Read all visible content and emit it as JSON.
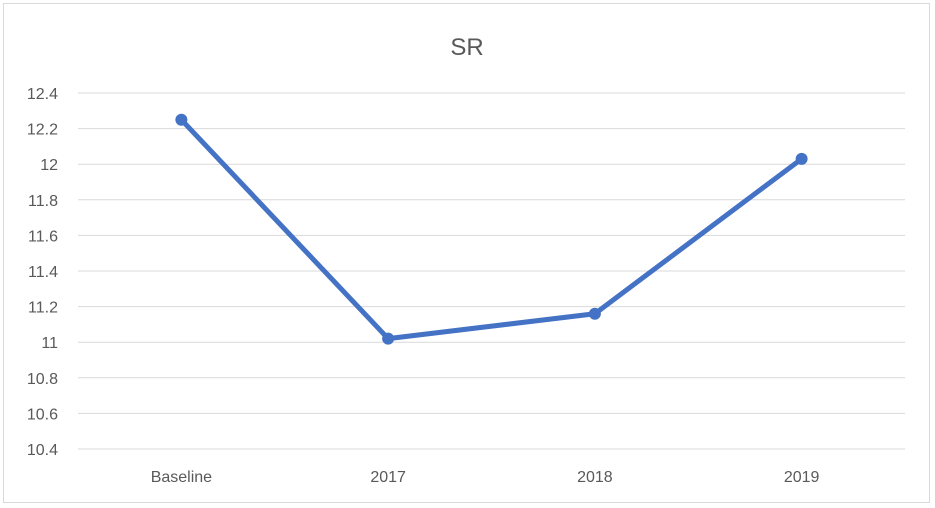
{
  "chart_data": {
    "type": "line",
    "title": "SR",
    "xlabel": "",
    "ylabel": "",
    "categories": [
      "Baseline",
      "2017",
      "2018",
      "2019"
    ],
    "series": [
      {
        "values": [
          12.25,
          11.02,
          11.16,
          12.03
        ]
      }
    ],
    "ylim": [
      10.4,
      12.4
    ],
    "yticks": [
      "10.4",
      "10.6",
      "10.8",
      "11",
      "11.2",
      "11.4",
      "11.6",
      "11.8",
      "12",
      "12.2",
      "12.4"
    ],
    "grid": true,
    "legend": "none",
    "colors": {
      "line": "#4472c4",
      "grid": "#d9d9d9",
      "text": "#595959"
    }
  }
}
